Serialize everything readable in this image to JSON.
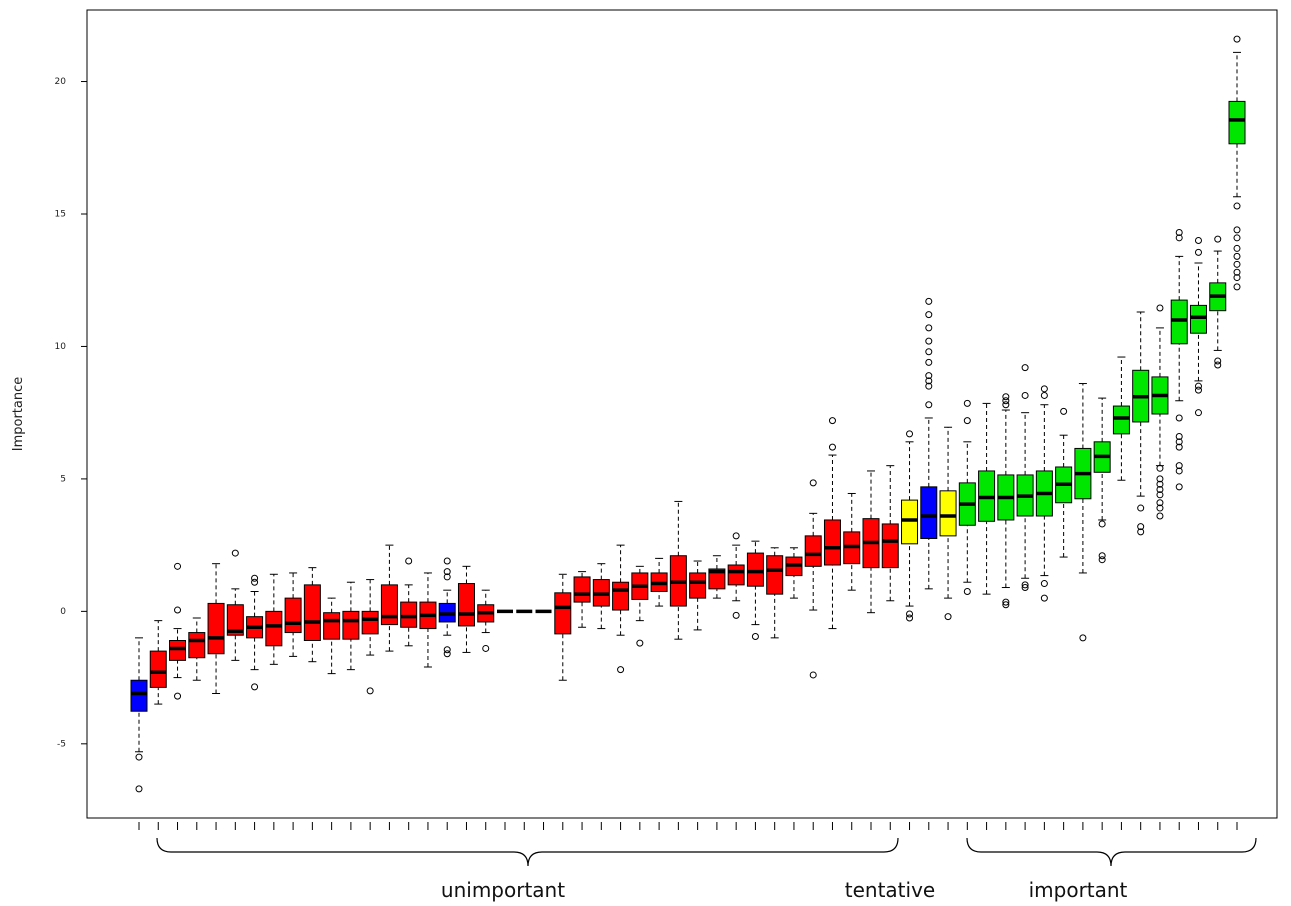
{
  "chart_data": {
    "type": "boxplot",
    "y_label": "Importance",
    "ylim": [
      -7.8,
      22.7
    ],
    "yticks": [
      -5,
      0,
      5,
      10,
      15,
      20
    ],
    "annotations": [
      "unimportant",
      "tentative",
      "important"
    ],
    "boxes": [
      {
        "whislo": -5.3,
        "q1": -3.77,
        "median": -3.1,
        "q3": -2.6,
        "whishi": -1.0,
        "outliers": [
          -5.5,
          -6.7
        ],
        "color": "#0000ff"
      },
      {
        "whislo": -3.5,
        "q1": -2.87,
        "median": -2.3,
        "q3": -1.5,
        "whishi": -0.35,
        "outliers": [],
        "color": "#ff0000"
      },
      {
        "whislo": -2.5,
        "q1": -1.85,
        "median": -1.4,
        "q3": -1.1,
        "whishi": -0.65,
        "outliers": [
          1.7,
          0.05,
          -3.2
        ],
        "color": "#ff0000"
      },
      {
        "whislo": -2.6,
        "q1": -1.75,
        "median": -1.1,
        "q3": -0.8,
        "whishi": -0.25,
        "outliers": [],
        "color": "#ff0000"
      },
      {
        "whislo": -3.1,
        "q1": -1.6,
        "median": -1.0,
        "q3": 0.3,
        "whishi": 1.8,
        "outliers": [],
        "color": "#ff0000"
      },
      {
        "whislo": -1.85,
        "q1": -0.9,
        "median": -0.75,
        "q3": 0.25,
        "whishi": 0.85,
        "outliers": [
          2.2
        ],
        "color": "#ff0000"
      },
      {
        "whislo": -2.2,
        "q1": -1.0,
        "median": -0.6,
        "q3": -0.2,
        "whishi": 0.75,
        "outliers": [
          1.25,
          1.1,
          -2.85
        ],
        "color": "#ff0000"
      },
      {
        "whislo": -2.0,
        "q1": -1.3,
        "median": -0.55,
        "q3": 0,
        "whishi": 1.4,
        "outliers": [],
        "color": "#ff0000"
      },
      {
        "whislo": -1.7,
        "q1": -0.8,
        "median": -0.45,
        "q3": 0.5,
        "whishi": 1.45,
        "outliers": [],
        "color": "#ff0000"
      },
      {
        "whislo": -1.9,
        "q1": -1.1,
        "median": -0.4,
        "q3": 1.0,
        "whishi": 1.65,
        "outliers": [],
        "color": "#ff0000"
      },
      {
        "whislo": -2.35,
        "q1": -1.05,
        "median": -0.35,
        "q3": -0.05,
        "whishi": 0.5,
        "outliers": [],
        "color": "#ff0000"
      },
      {
        "whislo": -2.2,
        "q1": -1.05,
        "median": -0.35,
        "q3": 0,
        "whishi": 1.1,
        "outliers": [],
        "color": "#ff0000"
      },
      {
        "whislo": -1.65,
        "q1": -0.85,
        "median": -0.3,
        "q3": 0,
        "whishi": 1.2,
        "outliers": [
          -3.0
        ],
        "color": "#ff0000"
      },
      {
        "whislo": -1.5,
        "q1": -0.5,
        "median": -0.2,
        "q3": 1.0,
        "whishi": 2.5,
        "outliers": [],
        "color": "#ff0000"
      },
      {
        "whislo": -1.3,
        "q1": -0.6,
        "median": -0.2,
        "q3": 0.35,
        "whishi": 1.0,
        "outliers": [
          1.9
        ],
        "color": "#ff0000"
      },
      {
        "whislo": -2.1,
        "q1": -0.65,
        "median": -0.15,
        "q3": 0.35,
        "whishi": 1.45,
        "outliers": [],
        "color": "#ff0000"
      },
      {
        "whislo": -0.9,
        "q1": -0.4,
        "median": -0.1,
        "q3": 0.3,
        "whishi": 0.8,
        "outliers": [
          1.9,
          1.5,
          1.3,
          -1.45,
          -1.6
        ],
        "color": "#0000ff"
      },
      {
        "whislo": -1.55,
        "q1": -0.55,
        "median": -0.1,
        "q3": 1.05,
        "whishi": 1.7,
        "outliers": [],
        "color": "#ff0000"
      },
      {
        "whislo": -0.8,
        "q1": -0.4,
        "median": -0.05,
        "q3": 0.25,
        "whishi": 0.8,
        "outliers": [
          -1.4
        ],
        "color": "#ff0000"
      },
      {
        "whislo": 0,
        "q1": 0,
        "median": 0,
        "q3": 0,
        "whishi": 0,
        "outliers": [],
        "color": "#ff0000"
      },
      {
        "whislo": 0,
        "q1": 0,
        "median": 0,
        "q3": 0,
        "whishi": 0,
        "outliers": [],
        "color": "#ff0000"
      },
      {
        "whislo": 0,
        "q1": 0,
        "median": 0,
        "q3": 0,
        "whishi": 0,
        "outliers": [],
        "color": "#ff0000"
      },
      {
        "whislo": -2.6,
        "q1": -0.85,
        "median": 0.15,
        "q3": 0.7,
        "whishi": 1.4,
        "outliers": [],
        "color": "#ff0000"
      },
      {
        "whislo": -0.6,
        "q1": 0.35,
        "median": 0.65,
        "q3": 1.3,
        "whishi": 1.5,
        "outliers": [],
        "color": "#ff0000"
      },
      {
        "whislo": -0.65,
        "q1": 0.2,
        "median": 0.65,
        "q3": 1.2,
        "whishi": 1.8,
        "outliers": [],
        "color": "#ff0000"
      },
      {
        "whislo": -0.9,
        "q1": 0.05,
        "median": 0.8,
        "q3": 1.1,
        "whishi": 2.5,
        "outliers": [
          -2.2
        ],
        "color": "#ff0000"
      },
      {
        "whislo": -0.35,
        "q1": 0.45,
        "median": 0.95,
        "q3": 1.45,
        "whishi": 1.7,
        "outliers": [
          -1.2
        ],
        "color": "#ff0000"
      },
      {
        "whislo": 0.2,
        "q1": 0.75,
        "median": 1.05,
        "q3": 1.45,
        "whishi": 2.0,
        "outliers": [],
        "color": "#ff0000"
      },
      {
        "whislo": -1.05,
        "q1": 0.2,
        "median": 1.1,
        "q3": 2.1,
        "whishi": 4.15,
        "outliers": [],
        "color": "#ff0000"
      },
      {
        "whislo": -0.7,
        "q1": 0.5,
        "median": 1.1,
        "q3": 1.45,
        "whishi": 1.9,
        "outliers": [],
        "color": "#ff0000"
      },
      {
        "whislo": 0.5,
        "q1": 0.85,
        "median": 1.5,
        "q3": 1.6,
        "whishi": 2.1,
        "outliers": [],
        "color": "#ff0000"
      },
      {
        "whislo": 0.4,
        "q1": 1.0,
        "median": 1.5,
        "q3": 1.75,
        "whishi": 2.5,
        "outliers": [
          2.85,
          -0.15
        ],
        "color": "#ff0000"
      },
      {
        "whislo": -0.5,
        "q1": 0.95,
        "median": 1.5,
        "q3": 2.2,
        "whishi": 2.65,
        "outliers": [
          -0.95
        ],
        "color": "#ff0000"
      },
      {
        "whislo": -1.0,
        "q1": 0.65,
        "median": 1.55,
        "q3": 2.1,
        "whishi": 2.4,
        "outliers": [],
        "color": "#ff0000"
      },
      {
        "whislo": 0.5,
        "q1": 1.35,
        "median": 1.75,
        "q3": 2.05,
        "whishi": 2.4,
        "outliers": [],
        "color": "#ff0000"
      },
      {
        "whislo": 0.05,
        "q1": 1.7,
        "median": 2.15,
        "q3": 2.85,
        "whishi": 3.7,
        "outliers": [
          4.85,
          -2.4
        ],
        "color": "#ff0000"
      },
      {
        "whislo": -0.65,
        "q1": 1.75,
        "median": 2.4,
        "q3": 3.45,
        "whishi": 5.9,
        "outliers": [
          6.2,
          7.2
        ],
        "color": "#ff0000"
      },
      {
        "whislo": 0.8,
        "q1": 1.8,
        "median": 2.45,
        "q3": 3.0,
        "whishi": 4.45,
        "outliers": [],
        "color": "#ff0000"
      },
      {
        "whislo": -0.05,
        "q1": 1.65,
        "median": 2.6,
        "q3": 3.5,
        "whishi": 5.3,
        "outliers": [],
        "color": "#ff0000"
      },
      {
        "whislo": 0.4,
        "q1": 1.65,
        "median": 2.65,
        "q3": 3.3,
        "whishi": 5.5,
        "outliers": [],
        "color": "#ff0000"
      },
      {
        "whislo": 0.2,
        "q1": 2.55,
        "median": 3.45,
        "q3": 4.2,
        "whishi": 6.4,
        "outliers": [
          6.7,
          -0.1,
          -0.25
        ],
        "color": "#ffff00"
      },
      {
        "whislo": 0.85,
        "q1": 2.75,
        "median": 3.6,
        "q3": 4.7,
        "whishi": 7.3,
        "outliers": [
          11.7,
          11.2,
          10.7,
          10.2,
          9.8,
          9.4,
          8.9,
          8.7,
          8.5,
          7.8
        ],
        "color": "#0000ff"
      },
      {
        "whislo": 0.5,
        "q1": 2.85,
        "median": 3.6,
        "q3": 4.55,
        "whishi": 6.95,
        "outliers": [
          -0.2
        ],
        "color": "#ffff00"
      },
      {
        "whislo": 1.1,
        "q1": 3.25,
        "median": 4.05,
        "q3": 4.85,
        "whishi": 6.4,
        "outliers": [
          7.85,
          7.2,
          0.75
        ],
        "color": "#00e600"
      },
      {
        "whislo": 0.65,
        "q1": 3.4,
        "median": 4.3,
        "q3": 5.3,
        "whishi": 7.85,
        "outliers": [],
        "color": "#00e600"
      },
      {
        "whislo": 0.9,
        "q1": 3.45,
        "median": 4.3,
        "q3": 5.15,
        "whishi": 7.6,
        "outliers": [
          8.1,
          7.95,
          7.8,
          0.35,
          0.25
        ],
        "color": "#00e600"
      },
      {
        "whislo": 1.25,
        "q1": 3.6,
        "median": 4.35,
        "q3": 5.15,
        "whishi": 7.5,
        "outliers": [
          9.2,
          8.15,
          1.0,
          0.9
        ],
        "color": "#00e600"
      },
      {
        "whislo": 1.35,
        "q1": 3.6,
        "median": 4.45,
        "q3": 5.3,
        "whishi": 7.8,
        "outliers": [
          8.4,
          8.15,
          1.05,
          0.5
        ],
        "color": "#00e600"
      },
      {
        "whislo": 2.05,
        "q1": 4.1,
        "median": 4.8,
        "q3": 5.45,
        "whishi": 6.65,
        "outliers": [
          7.55
        ],
        "color": "#00e600"
      },
      {
        "whislo": 1.45,
        "q1": 4.25,
        "median": 5.2,
        "q3": 6.15,
        "whishi": 8.6,
        "outliers": [
          -1.0
        ],
        "color": "#00e600"
      },
      {
        "whislo": 3.45,
        "q1": 5.25,
        "median": 5.85,
        "q3": 6.4,
        "whishi": 8.05,
        "outliers": [
          3.3,
          2.1,
          1.95
        ],
        "color": "#00e600"
      },
      {
        "whislo": 4.95,
        "q1": 6.7,
        "median": 7.3,
        "q3": 7.75,
        "whishi": 9.6,
        "outliers": [],
        "color": "#00e600"
      },
      {
        "whislo": 4.35,
        "q1": 7.15,
        "median": 8.1,
        "q3": 9.1,
        "whishi": 11.3,
        "outliers": [
          3.9,
          3.2,
          3.0
        ],
        "color": "#00e600"
      },
      {
        "whislo": 5.5,
        "q1": 7.45,
        "median": 8.15,
        "q3": 8.85,
        "whishi": 10.7,
        "outliers": [
          11.45,
          5.4,
          5.0,
          4.8,
          4.6,
          4.4,
          4.1,
          3.9,
          3.6
        ],
        "color": "#00e600"
      },
      {
        "whislo": 7.95,
        "q1": 10.1,
        "median": 11.0,
        "q3": 11.75,
        "whishi": 13.4,
        "outliers": [
          14.3,
          14.1,
          7.3,
          6.6,
          6.4,
          6.2,
          5.5,
          5.3,
          4.7
        ],
        "color": "#00e600"
      },
      {
        "whislo": 8.7,
        "q1": 10.5,
        "median": 11.1,
        "q3": 11.55,
        "whishi": 13.15,
        "outliers": [
          14.0,
          13.55,
          8.5,
          8.35,
          7.5
        ],
        "color": "#00e600"
      },
      {
        "whislo": 9.85,
        "q1": 11.35,
        "median": 11.9,
        "q3": 12.4,
        "whishi": 13.6,
        "outliers": [
          14.05,
          9.45,
          9.3
        ],
        "color": "#00e600"
      },
      {
        "whislo": 15.65,
        "q1": 17.65,
        "median": 18.55,
        "q3": 19.25,
        "whishi": 21.1,
        "outliers": [
          21.6,
          15.3,
          14.4,
          14.1,
          13.7,
          13.4,
          13.1,
          12.8,
          12.6,
          12.25
        ],
        "color": "#00e600"
      }
    ]
  }
}
